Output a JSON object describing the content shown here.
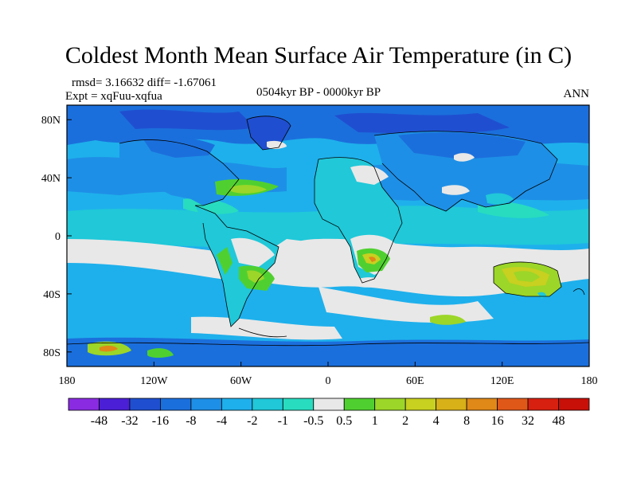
{
  "title": "Coldest Month Mean Surface Air Temperature (in C)",
  "stats": "rmsd= 3.16632 diff= -1.67061",
  "experiment": "Expt = xqFuu-xqfua",
  "period": "0504kyr BP - 0000kyr BP",
  "season": "ANN",
  "lon_ticks": [
    "180",
    "120W",
    "60W",
    "0",
    "60E",
    "120E",
    "180"
  ],
  "lat_ticks": [
    "80N",
    "40N",
    "0",
    "40S",
    "80S"
  ],
  "colorbar": {
    "labels": [
      "-48",
      "-32",
      "-16",
      "-8",
      "-4",
      "-2",
      "-1",
      "-0.5",
      "0.5",
      "1",
      "2",
      "4",
      "8",
      "16",
      "32",
      "48"
    ],
    "colors": [
      "#8a2be2",
      "#4b1fd6",
      "#1f4fd0",
      "#1b6fdc",
      "#1e8fe6",
      "#1eb0ec",
      "#20c8d8",
      "#28dcc0",
      "#e8e8e8",
      "#50d030",
      "#9cd628",
      "#c8d020",
      "#d8b018",
      "#e08818",
      "#e05818",
      "#d82010",
      "#c81008"
    ]
  },
  "palette": {
    "deep_blue": "#1f4fd0",
    "blue": "#1b6fdc",
    "mid_blue": "#1e8fe6",
    "sky": "#1eb0ec",
    "cyan": "#20c8d8",
    "teal": "#28dcc0",
    "neutral": "#e8e8e8",
    "green": "#50d030",
    "yellow_green": "#9cd628",
    "olive": "#c8d020",
    "orange": "#e08818"
  }
}
